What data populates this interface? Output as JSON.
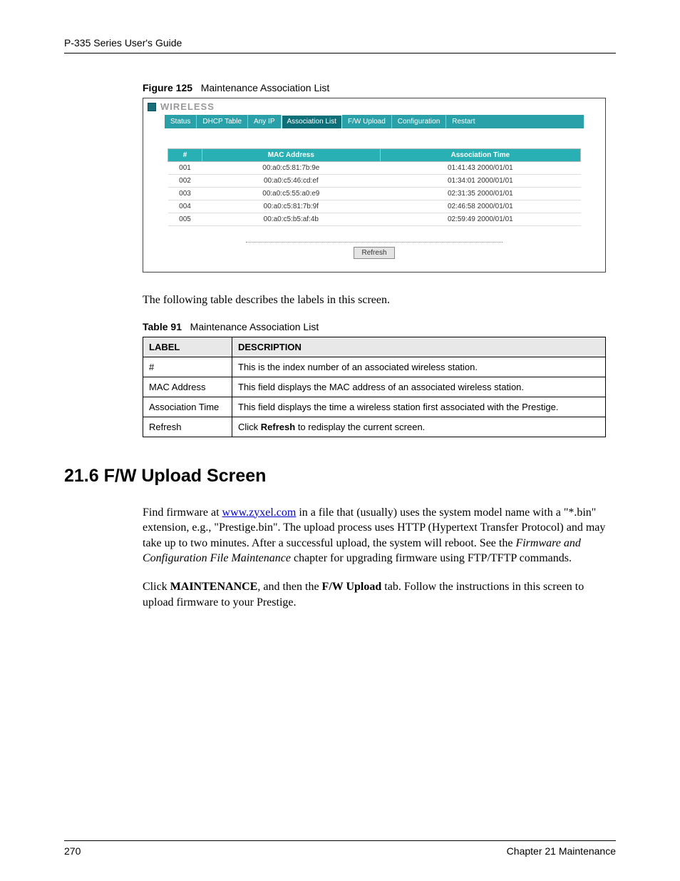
{
  "header": {
    "guide_title": "P-335 Series User's Guide"
  },
  "figure": {
    "label": "Figure 125",
    "title": "Maintenance Association List",
    "panel_title": "WIRELESS",
    "tabs": [
      "Status",
      "DHCP Table",
      "Any IP",
      "Association List",
      "F/W Upload",
      "Configuration",
      "Restart"
    ],
    "active_tab_index": 3,
    "table": {
      "headers": [
        "#",
        "MAC Address",
        "Association Time"
      ],
      "rows": [
        [
          "001",
          "00:a0:c5:81:7b:9e",
          "01:41:43 2000/01/01"
        ],
        [
          "002",
          "00:a0:c5:46:cd:ef",
          "01:34:01 2000/01/01"
        ],
        [
          "003",
          "00:a0:c5:55:a0:e9",
          "02:31:35 2000/01/01"
        ],
        [
          "004",
          "00:a0:c5:81:7b:9f",
          "02:46:58 2000/01/01"
        ],
        [
          "005",
          "00:a0:c5:b5:af:4b",
          "02:59:49 2000/01/01"
        ]
      ]
    },
    "refresh_label": "Refresh"
  },
  "intro_text": "The following table describes the labels in this screen.",
  "table91": {
    "label": "Table 91",
    "title": "Maintenance Association List",
    "headers": [
      "LABEL",
      "DESCRIPTION"
    ],
    "rows": [
      {
        "label": "#",
        "desc": "This is the index number of an associated wireless station."
      },
      {
        "label": "MAC Address",
        "desc": "This field displays the MAC address of an associated wireless station."
      },
      {
        "label": "Association Time",
        "desc": "This field displays the time a wireless station first associated with the Prestige."
      },
      {
        "label": "Refresh",
        "desc_pre": "Click ",
        "desc_bold": "Refresh",
        "desc_post": " to redisplay the current screen."
      }
    ]
  },
  "section": {
    "heading": "21.6  F/W Upload Screen",
    "para1_pre": "Find firmware at ",
    "para1_link": "www.zyxel.com",
    "para1_post_a": " in a file that (usually) uses the system model name with a \"*.bin\" extension, e.g., \"Prestige.bin\". The upload process uses HTTP (Hypertext Transfer Protocol) and may take up to two minutes. After a successful upload, the system will reboot. See the ",
    "para1_italic": "Firmware and Configuration File Maintenance",
    "para1_post_b": " chapter for upgrading firmware using FTP/TFTP commands.",
    "para2_a": "Click ",
    "para2_b1": "MAINTENANCE",
    "para2_c": ", and then the ",
    "para2_b2": "F/W Upload",
    "para2_d": " tab. Follow the instructions in this screen to upload firmware to your Prestige."
  },
  "footer": {
    "page_number": "270",
    "chapter": "Chapter 21 Maintenance"
  },
  "colors": {
    "tab_bg": "#2aa0a8",
    "tab_active_bg": "#0d6f78",
    "th_bg": "#29b0b4",
    "panel_title_color": "#9a9a9a"
  }
}
